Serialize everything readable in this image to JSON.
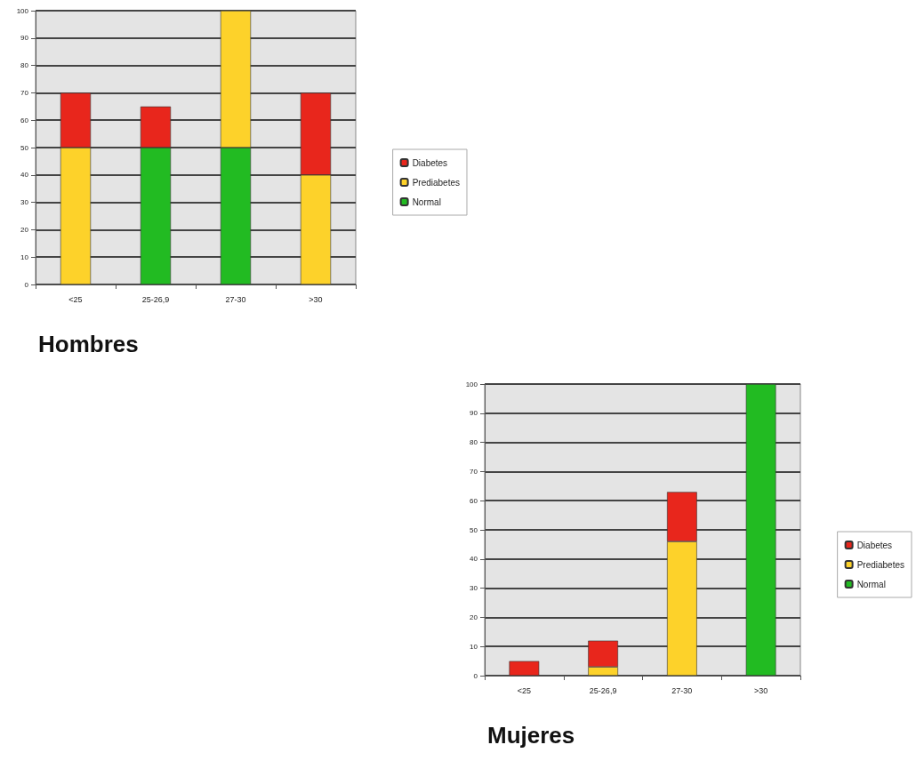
{
  "chart_data": [
    {
      "type": "bar",
      "title": "Hombres",
      "categories": [
        "<25",
        "25-26,9",
        "27-30",
        ">30"
      ],
      "stacked": true,
      "ylim": [
        0,
        100
      ],
      "yticks": [
        0,
        10,
        20,
        30,
        40,
        50,
        60,
        70,
        80,
        90,
        100
      ],
      "grid": "y",
      "legend": "right",
      "series": [
        {
          "name": "Normal",
          "color": "#22bb22",
          "values": [
            0,
            50,
            50,
            0
          ]
        },
        {
          "name": "Prediabetes",
          "color": "#fdd22a",
          "values": [
            50,
            0,
            50,
            40
          ]
        },
        {
          "name": "Diabetes",
          "color": "#e8261c",
          "values": [
            20,
            15,
            0,
            30
          ]
        }
      ]
    },
    {
      "type": "bar",
      "title": "Mujeres",
      "categories": [
        "<25",
        "25-26,9",
        "27-30",
        ">30"
      ],
      "stacked": true,
      "ylim": [
        0,
        100
      ],
      "yticks": [
        0,
        10,
        20,
        30,
        40,
        50,
        60,
        70,
        80,
        90,
        100
      ],
      "grid": "y",
      "legend": "right",
      "series": [
        {
          "name": "Normal",
          "color": "#22bb22",
          "values": [
            0,
            0,
            0,
            100
          ]
        },
        {
          "name": "Prediabetes",
          "color": "#fdd22a",
          "values": [
            0,
            3,
            46,
            0
          ]
        },
        {
          "name": "Diabetes",
          "color": "#e8261c",
          "values": [
            5,
            9,
            17,
            0
          ]
        }
      ]
    }
  ]
}
